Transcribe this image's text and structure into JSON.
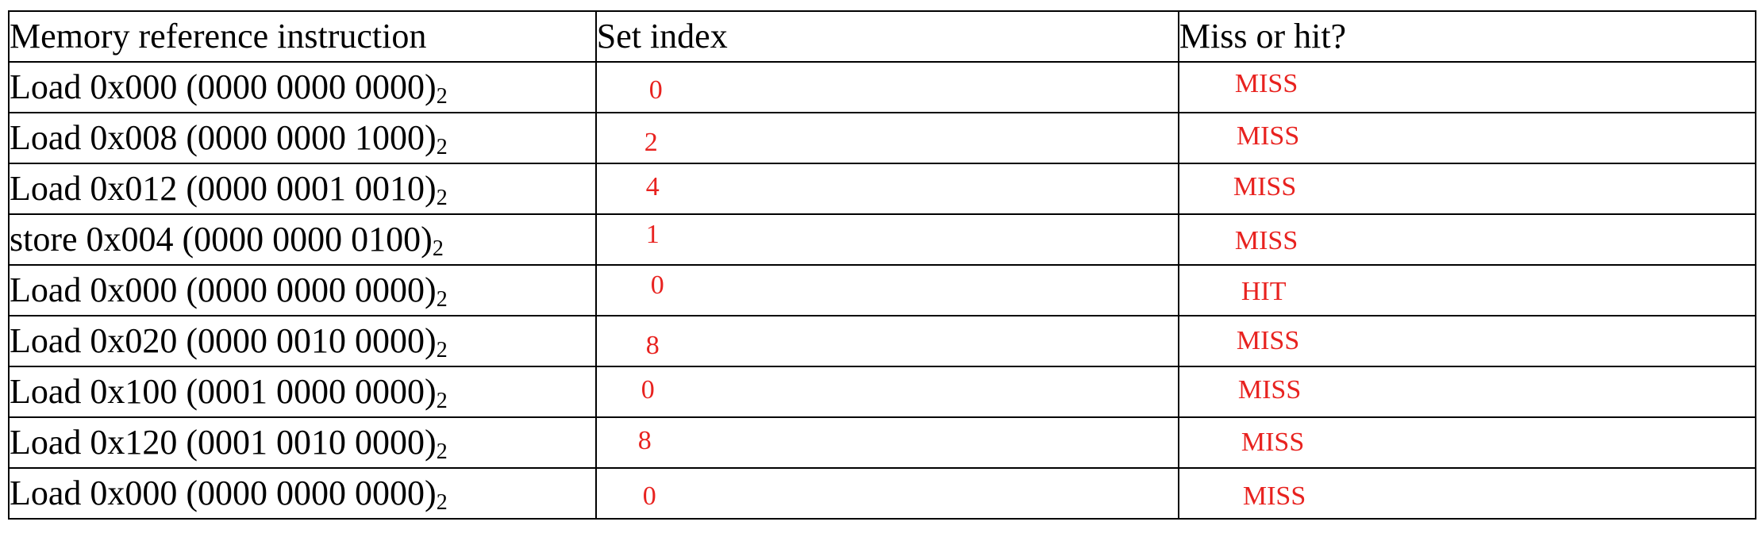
{
  "table": {
    "headers": [
      "Memory reference instruction",
      "Set index",
      "Miss or hit?"
    ],
    "subscript": "2",
    "rows": [
      {
        "instruction": "Load 0x000 (0000 0000 0000)",
        "set_index": "0",
        "result": "MISS"
      },
      {
        "instruction": "Load 0x008 (0000 0000 1000)",
        "set_index": "2",
        "result": "MISS"
      },
      {
        "instruction": "Load 0x012 (0000 0001 0010)",
        "set_index": "4",
        "result": "MISS"
      },
      {
        "instruction": "store 0x004 (0000 0000 0100)",
        "set_index": "1",
        "result": "MISS"
      },
      {
        "instruction": "Load 0x000 (0000 0000 0000)",
        "set_index": "0",
        "result": "HIT"
      },
      {
        "instruction": "Load 0x020 (0000 0010 0000)",
        "set_index": "8",
        "result": "MISS"
      },
      {
        "instruction": "Load 0x100 (0001 0000 0000)",
        "set_index": "0",
        "result": "MISS"
      },
      {
        "instruction": "Load 0x120 (0001 0010 0000)",
        "set_index": "8",
        "result": "MISS"
      },
      {
        "instruction": "Load 0x000 (0000 0000 0000)",
        "set_index": "0",
        "result": "MISS"
      }
    ]
  },
  "colors": {
    "annotation": "#e8221f",
    "text": "#000000",
    "border": "#000000"
  }
}
